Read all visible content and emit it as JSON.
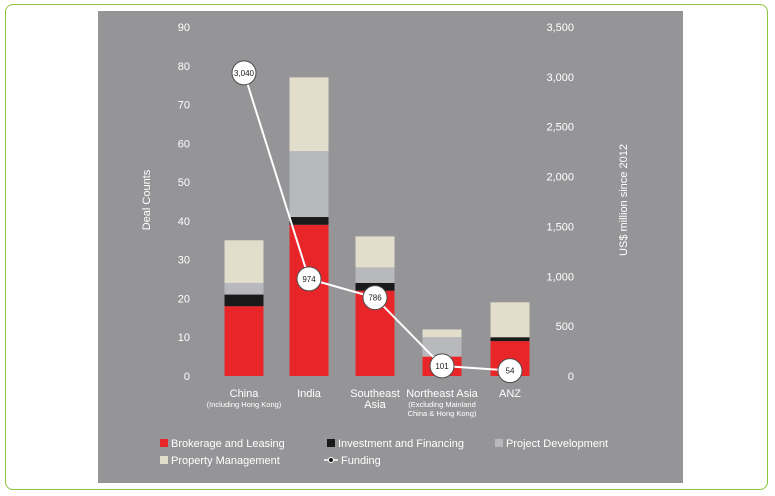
{
  "chart_data": {
    "type": "bar",
    "stacked": true,
    "categories": [
      "China",
      "India",
      "Southeast Asia",
      "Northeast Asia",
      "ANZ"
    ],
    "category_labels": [
      {
        "main": [
          "China"
        ],
        "sub": [
          "(Including Hong Kong)"
        ]
      },
      {
        "main": [
          "India"
        ],
        "sub": []
      },
      {
        "main": [
          "Southeast",
          "Asia"
        ],
        "sub": []
      },
      {
        "main": [
          "Northeast Asia"
        ],
        "sub": [
          "(Excluding Mainland",
          "China & Hong Kong)"
        ]
      },
      {
        "main": [
          "ANZ"
        ],
        "sub": []
      }
    ],
    "series": [
      {
        "name": "Brokerage and Leasing",
        "color": "#e8262a",
        "values": [
          18,
          39,
          22,
          5,
          9
        ]
      },
      {
        "name": "Investment and Financing",
        "color": "#1a1a1a",
        "values": [
          3,
          2,
          2,
          0,
          1
        ]
      },
      {
        "name": "Project Development",
        "color": "#b8b9bd",
        "values": [
          3,
          17,
          4,
          5,
          0
        ]
      },
      {
        "name": "Property Management",
        "color": "#e3ddcc",
        "values": [
          11,
          19,
          8,
          2,
          9
        ]
      }
    ],
    "line_series": {
      "name": "Funding",
      "axis": "right",
      "values": [
        3040,
        974,
        786,
        101,
        54
      ],
      "value_labels": [
        "3,040",
        "974",
        "786",
        "101",
        "54"
      ]
    },
    "ylabel": "Deal Counts",
    "ylim": [
      0,
      90
    ],
    "yticks": [
      0,
      10,
      20,
      30,
      40,
      50,
      60,
      70,
      80,
      90
    ],
    "y2label": "US$ million since 2012",
    "y2lim": [
      0,
      3500
    ],
    "y2ticks": [
      0,
      500,
      1000,
      1500,
      2000,
      2500,
      3000,
      3500
    ],
    "y2tick_labels": [
      "0",
      "500",
      "1,000",
      "1,500",
      "2,000",
      "2,500",
      "3,000",
      "3,500"
    ],
    "grid": false,
    "legend_position": "bottom",
    "legend": [
      "Brokerage and Leasing",
      "Investment and Financing",
      "Project Development",
      "Property Management",
      "Funding"
    ]
  },
  "colors": {
    "panel": "#959598",
    "text": "#ffffff",
    "line": "#ffffff",
    "frame_border": "#8cc63f"
  }
}
